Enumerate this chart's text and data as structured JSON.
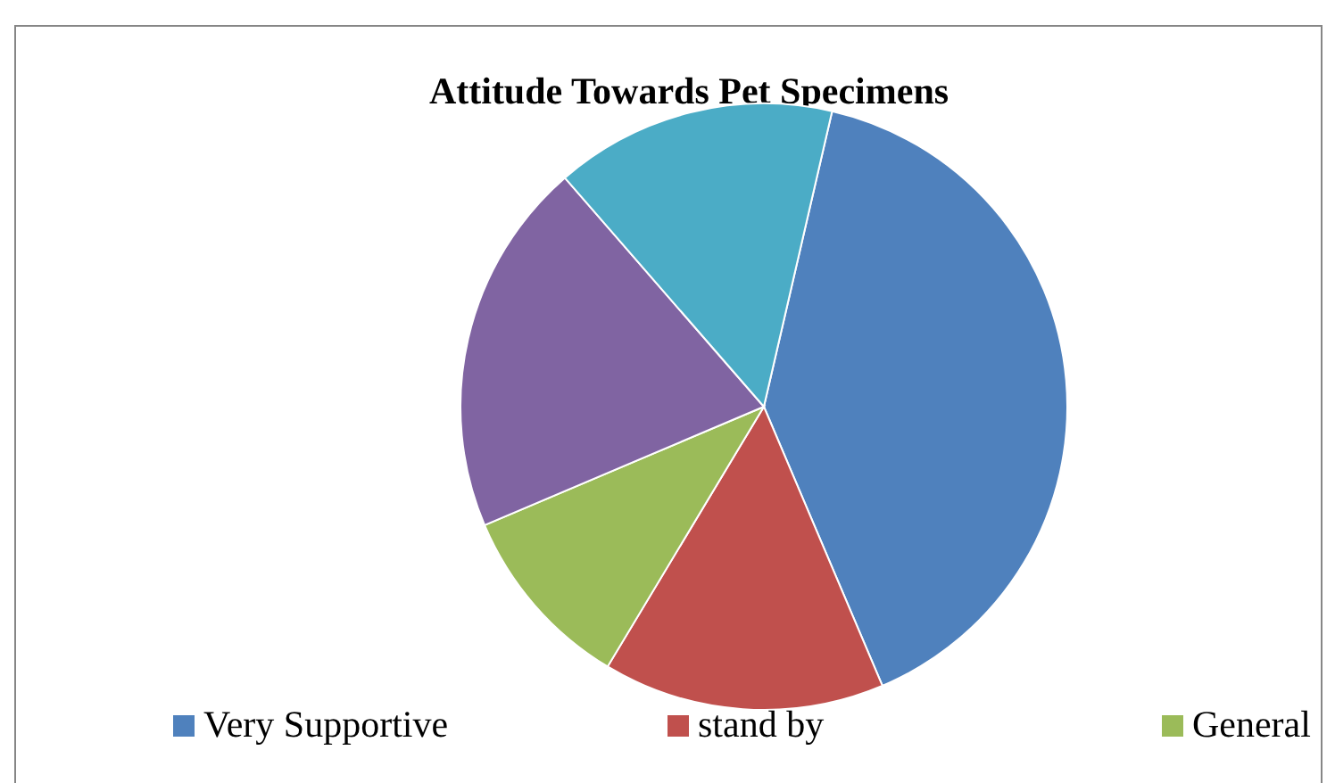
{
  "chart_data": {
    "type": "pie",
    "title": "Attitude Towards Pet Specimens",
    "categories": [
      "Very Supportive",
      "stand by",
      "General",
      null,
      null
    ],
    "values": [
      40,
      15,
      10,
      20,
      15
    ],
    "colors": [
      "#4f81bd",
      "#c0504d",
      "#9bbb59",
      "#8064a2",
      "#4bacc6"
    ],
    "legend": "bottom"
  }
}
